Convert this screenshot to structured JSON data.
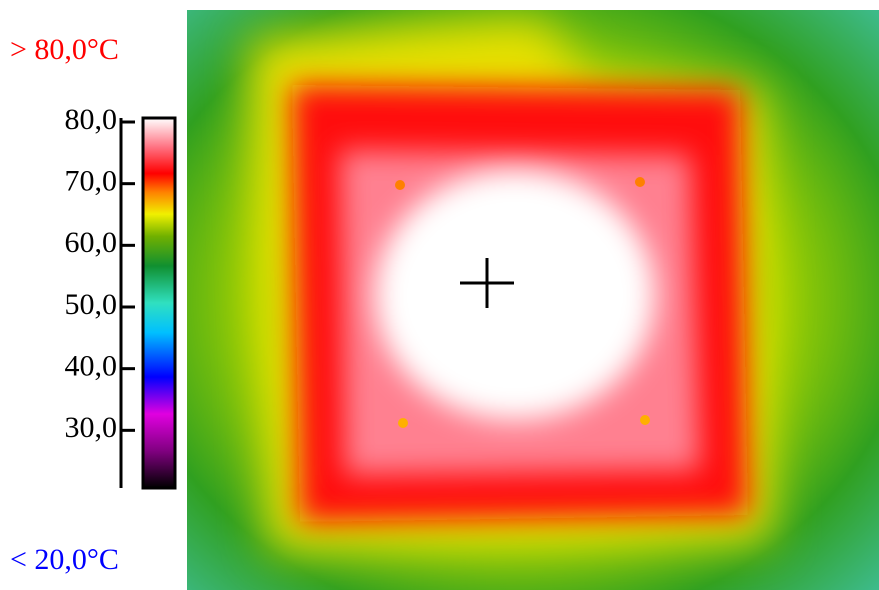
{
  "over_label": {
    "text": "> 80,0°C",
    "color": "#ff0000"
  },
  "under_label": {
    "text": "< 20,0°C",
    "color": "#0000ff"
  },
  "colorbar": {
    "ylim": [
      20,
      80
    ],
    "yticks": [
      {
        "value": 80,
        "label": "80,0"
      },
      {
        "value": 70,
        "label": "70,0"
      },
      {
        "value": 60,
        "label": "60,0"
      },
      {
        "value": 50,
        "label": "50,0"
      },
      {
        "value": 40,
        "label": "40,0"
      },
      {
        "value": 30,
        "label": "30,0"
      }
    ]
  }
}
